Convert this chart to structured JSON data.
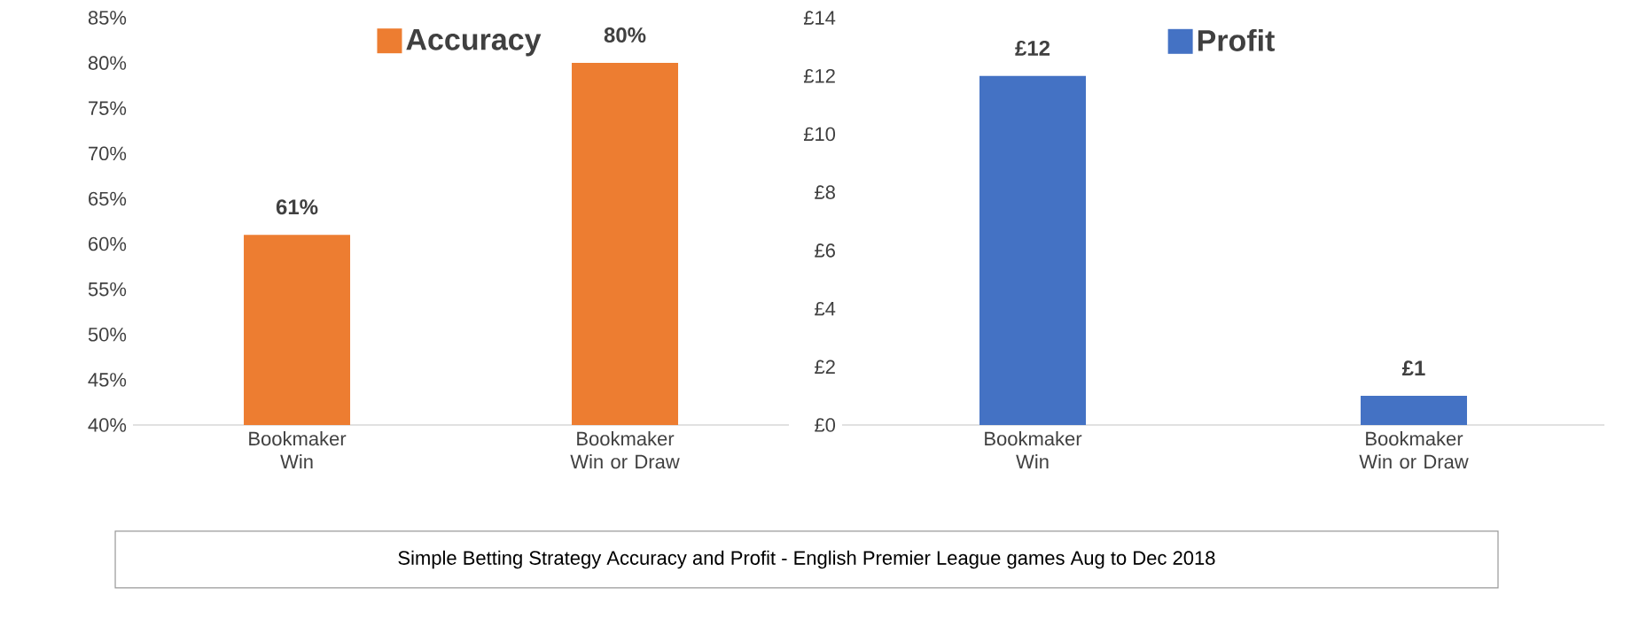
{
  "chart_data": [
    {
      "type": "bar",
      "categories": [
        "Bookmaker Win",
        "Bookmaker Win or Draw"
      ],
      "series": [
        {
          "name": "Accuracy",
          "color": "#ed7d31",
          "values": [
            61,
            80
          ],
          "value_labels": [
            "61%",
            "80%"
          ]
        }
      ],
      "ylim": [
        40,
        85
      ],
      "yticks": [
        {
          "value": 40,
          "label": "40%"
        },
        {
          "value": 45,
          "label": "45%"
        },
        {
          "value": 50,
          "label": "50%"
        },
        {
          "value": 55,
          "label": "55%"
        },
        {
          "value": 60,
          "label": "60%"
        },
        {
          "value": 65,
          "label": "65%"
        },
        {
          "value": 70,
          "label": "70%"
        },
        {
          "value": 75,
          "label": "75%"
        },
        {
          "value": 80,
          "label": "80%"
        },
        {
          "value": 85,
          "label": "85%"
        }
      ],
      "legend": "top",
      "grid": false,
      "annotations": [
        "Simple Betting Strategy Accuracy and Profit - English Premier League games Aug to Dec 2018"
      ]
    },
    {
      "type": "bar",
      "categories": [
        "Bookmaker Win",
        "Bookmaker Win or Draw"
      ],
      "series": [
        {
          "name": "Profit",
          "color": "#4472c4",
          "values": [
            12,
            1
          ],
          "value_labels": [
            "£12",
            "£1"
          ]
        }
      ],
      "ylim": [
        0,
        14
      ],
      "yticks": [
        {
          "value": 0,
          "label": "£0"
        },
        {
          "value": 2,
          "label": "£2"
        },
        {
          "value": 4,
          "label": "£4"
        },
        {
          "value": 6,
          "label": "£6"
        },
        {
          "value": 8,
          "label": "£8"
        },
        {
          "value": 10,
          "label": "£10"
        },
        {
          "value": 12,
          "label": "£12"
        },
        {
          "value": 14,
          "label": "£14"
        }
      ],
      "legend": "top",
      "grid": false
    }
  ]
}
